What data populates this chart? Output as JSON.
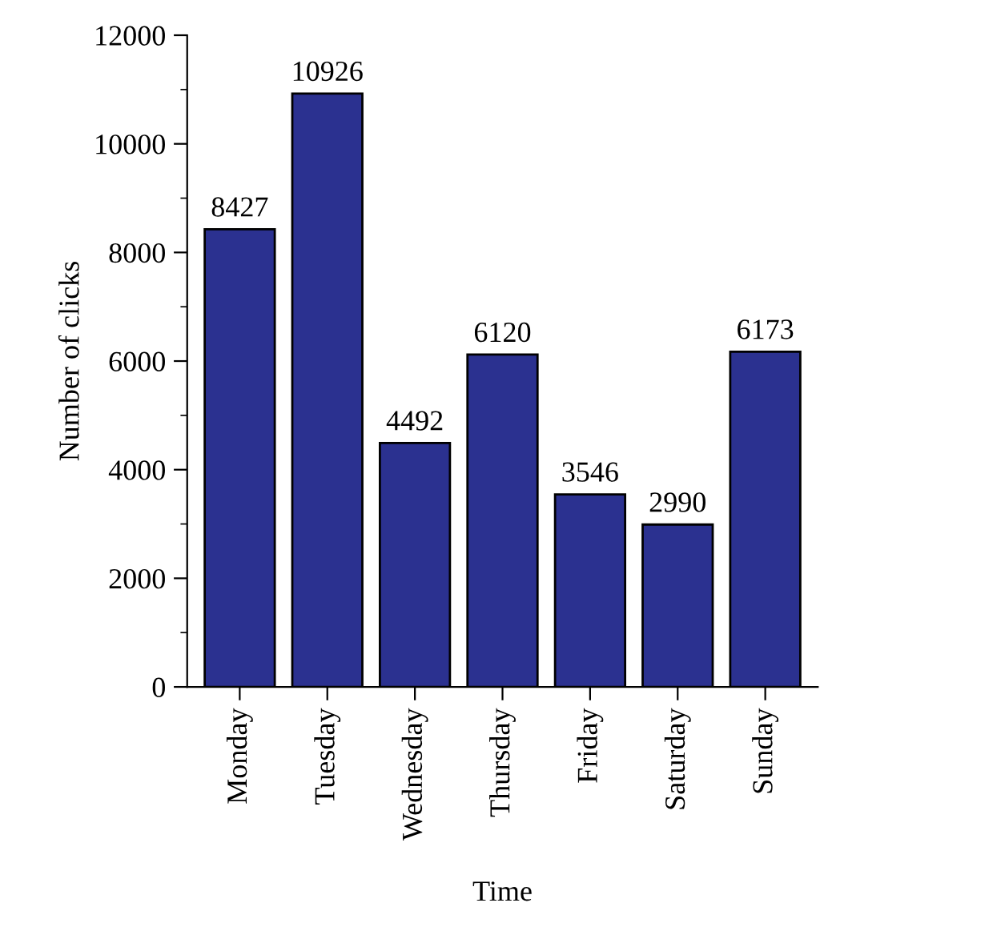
{
  "chart_data": {
    "type": "bar",
    "xlabel": "Time",
    "ylabel": "Number of clicks",
    "categories": [
      "Monday",
      "Tuesday",
      "Wednesday",
      "Thursday",
      "Friday",
      "Saturday",
      "Sunday"
    ],
    "values": [
      8427,
      10926,
      4492,
      6120,
      3546,
      2990,
      6173
    ],
    "color": "#2b3190",
    "data_labels": true,
    "ylim": [
      0,
      12000
    ],
    "yticks": [
      0,
      {
        "value": 1000,
        "label": null
      },
      2000,
      {
        "value": 3000,
        "label": null
      },
      4000,
      {
        "value": 5000,
        "label": null
      },
      6000,
      {
        "value": 7000,
        "label": null
      },
      8000,
      {
        "value": 9000,
        "label": null
      },
      10000,
      {
        "value": 11000,
        "label": null
      },
      12000
    ],
    "grid": false
  }
}
